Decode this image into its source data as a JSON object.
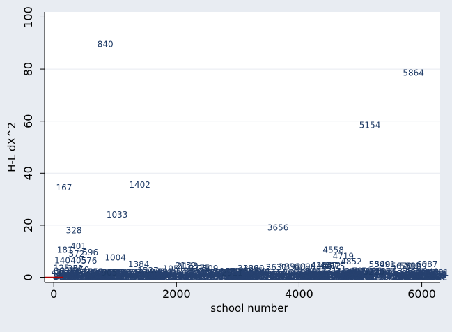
{
  "colors": {
    "background": "#e8ecf2",
    "plot_background": "#ffffff",
    "marker": "#26416f",
    "label_text": "#1f3b66",
    "grid": "#e7eaf0",
    "axis": "#000000",
    "zero_line": "#b00000"
  },
  "chart_data": {
    "type": "scatter",
    "title": "",
    "xlabel": "school number",
    "ylabel": "H-L dX^2",
    "xlim": [
      -150,
      6300
    ],
    "ylim": [
      -2,
      102
    ],
    "xticks": [
      0,
      2000,
      4000,
      6000
    ],
    "xtick_labels": [
      "0",
      "2000",
      "4000",
      "6000"
    ],
    "yticks": [
      0,
      20,
      40,
      60,
      80,
      100
    ],
    "ytick_labels": [
      "0",
      "20",
      "40",
      "60",
      "80",
      "100"
    ],
    "grid": true,
    "marker": "school number label",
    "baseline": {
      "x_start": -150,
      "x_end": 150,
      "y": 0
    },
    "points": [
      {
        "label": "840",
        "x": 840,
        "y": 89.5
      },
      {
        "label": "5864",
        "x": 5864,
        "y": 78.5
      },
      {
        "label": "5154",
        "x": 5154,
        "y": 58.5
      },
      {
        "label": "167",
        "x": 167,
        "y": 34.5
      },
      {
        "label": "1402",
        "x": 1402,
        "y": 35.5
      },
      {
        "label": "1033",
        "x": 1033,
        "y": 24
      },
      {
        "label": "328",
        "x": 328,
        "y": 18
      },
      {
        "label": "3656",
        "x": 3656,
        "y": 19
      },
      {
        "label": "401",
        "x": 401,
        "y": 12
      },
      {
        "label": "181",
        "x": 181,
        "y": 10.5
      },
      {
        "label": "596",
        "x": 596,
        "y": 9.5
      },
      {
        "label": "372",
        "x": 372,
        "y": 9
      },
      {
        "label": "4558",
        "x": 4558,
        "y": 10.5
      },
      {
        "label": "4719",
        "x": 4719,
        "y": 8
      },
      {
        "label": "1004",
        "x": 1004,
        "y": 7.5
      },
      {
        "label": "140",
        "x": 140,
        "y": 6.5
      },
      {
        "label": "405",
        "x": 405,
        "y": 6.5
      },
      {
        "label": "576",
        "x": 576,
        "y": 6.3
      },
      {
        "label": "4852",
        "x": 4852,
        "y": 6
      },
      {
        "label": "1384",
        "x": 1384,
        "y": 5
      },
      {
        "label": "5309",
        "x": 5309,
        "y": 5
      },
      {
        "label": "5401",
        "x": 5401,
        "y": 5
      },
      {
        "label": "6087",
        "x": 6087,
        "y": 5
      },
      {
        "label": "2152",
        "x": 2152,
        "y": 4.5
      },
      {
        "label": "2183",
        "x": 2183,
        "y": 4.3
      },
      {
        "label": "4364",
        "x": 4364,
        "y": 4.5
      },
      {
        "label": "4457",
        "x": 4457,
        "y": 4.5
      },
      {
        "label": "4512",
        "x": 4512,
        "y": 4.5
      },
      {
        "label": "4575",
        "x": 4575,
        "y": 4.2
      },
      {
        "label": "5670",
        "x": 5670,
        "y": 4.3
      },
      {
        "label": "5812",
        "x": 5812,
        "y": 4.3
      },
      {
        "label": "5909",
        "x": 5909,
        "y": 4.3
      },
      {
        "label": "125",
        "x": 125,
        "y": 3.5
      },
      {
        "label": "352",
        "x": 352,
        "y": 3.3
      },
      {
        "label": "450",
        "x": 450,
        "y": 2.8
      },
      {
        "label": "2509",
        "x": 2509,
        "y": 3.3
      },
      {
        "label": "2375",
        "x": 2375,
        "y": 3.5
      },
      {
        "label": "3630",
        "x": 3630,
        "y": 3.8
      },
      {
        "label": "3836",
        "x": 3836,
        "y": 4
      },
      {
        "label": "3938",
        "x": 3938,
        "y": 4
      },
      {
        "label": "4098",
        "x": 4098,
        "y": 4
      },
      {
        "label": "3169",
        "x": 3169,
        "y": 3.3
      },
      {
        "label": "3260",
        "x": 3260,
        "y": 3.3
      },
      {
        "label": "1951",
        "x": 1951,
        "y": 3.2
      },
      {
        "label": "1537",
        "x": 1537,
        "y": 2.5
      },
      {
        "label": "43",
        "x": 43,
        "y": 1.8
      },
      {
        "label": "905",
        "x": 905,
        "y": 1.8
      },
      {
        "label": "2911",
        "x": 2911,
        "y": 1.8
      },
      {
        "label": "5220",
        "x": 5220,
        "y": 2
      }
    ],
    "dense_cluster": {
      "x_range": [
        150,
        6300
      ],
      "y_range": [
        0,
        2.5
      ],
      "description_marker": "overlapping school number labels"
    }
  }
}
